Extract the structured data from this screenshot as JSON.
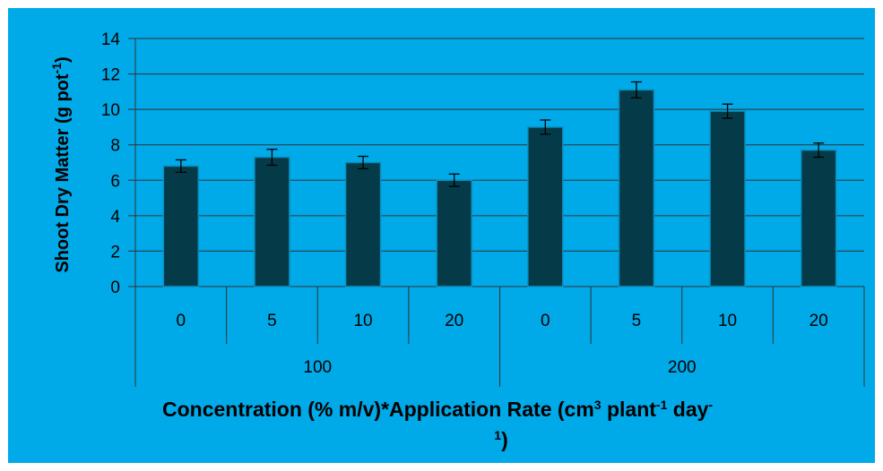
{
  "chart_data": {
    "type": "bar",
    "title": "",
    "ylabel": {
      "main": "Shoot Dry Matter (g pot",
      "sup": "-1",
      "end": ")"
    },
    "xlabel": {
      "line1_a": "Concentration (% m/v)*Application Rate (cm",
      "line1_sup1": "3",
      "line1_b": " plant",
      "line1_sup2": "-1",
      "line1_c": " day",
      "line1_sup3": "-",
      "line2_sup": "1",
      "line2_end": ")"
    },
    "ylim": [
      0,
      14
    ],
    "yticks": [
      0,
      2,
      4,
      6,
      8,
      10,
      12,
      14
    ],
    "grid": true,
    "legend": "none",
    "bar_color": "#053b48",
    "groups": [
      {
        "label": "100",
        "categories": [
          "0",
          "5",
          "10",
          "20"
        ],
        "values": [
          6.8,
          7.3,
          7.0,
          6.0
        ],
        "errors": [
          0.35,
          0.45,
          0.35,
          0.35
        ]
      },
      {
        "label": "200",
        "categories": [
          "0",
          "5",
          "10",
          "20"
        ],
        "values": [
          9.0,
          11.1,
          9.9,
          7.7
        ],
        "errors": [
          0.4,
          0.45,
          0.4,
          0.4
        ]
      }
    ]
  }
}
